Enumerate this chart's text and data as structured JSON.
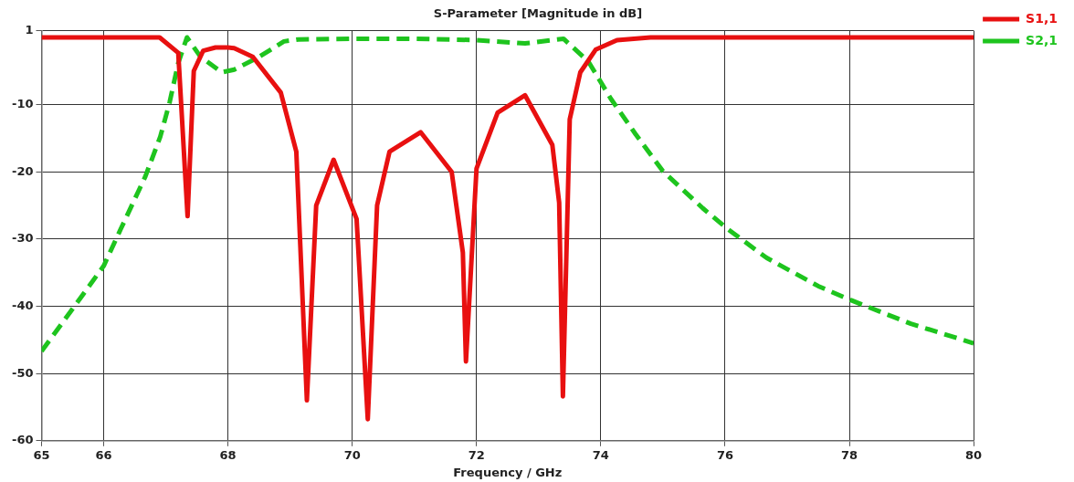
{
  "chart_data": {
    "type": "line",
    "title": "S-Parameter [Magnitude in dB]",
    "xlabel": "Frequency / GHz",
    "xlim": [
      65,
      80
    ],
    "xticks": [
      65,
      66,
      68,
      70,
      72,
      74,
      76,
      78,
      80
    ],
    "ylim": [
      -60,
      1
    ],
    "yticks": [
      -60,
      -50,
      -40,
      -30,
      -20,
      -10,
      1
    ],
    "grid": true,
    "legend": "top right",
    "series": [
      {
        "name": "S1,1",
        "color": "#e81010",
        "line_style": "solid",
        "x": [
          65,
          66,
          66.9,
          67.2,
          67.35,
          67.45,
          67.6,
          67.8,
          68,
          68.1,
          68.4,
          68.85,
          69.1,
          69.27,
          69.42,
          69.7,
          70.07,
          70.25,
          70.4,
          70.6,
          71.1,
          71.6,
          71.78,
          71.83,
          72.0,
          72.34,
          72.78,
          73.22,
          73.33,
          73.39,
          73.5,
          73.67,
          73.92,
          74.26,
          74.8,
          80
        ],
        "values": [
          0,
          0,
          0,
          -2.3,
          -26.6,
          -5,
          -2,
          -1.5,
          -1.5,
          -1.6,
          -2.9,
          -8.2,
          -17,
          -54,
          -25,
          -18.2,
          -27,
          -56.8,
          -25,
          -17,
          -14.1,
          -20,
          -32,
          -48.2,
          -19.5,
          -11.2,
          -8.6,
          -16,
          -24.6,
          -53.4,
          -12.2,
          -5.2,
          -1.8,
          -0.4,
          0,
          0
        ]
      },
      {
        "name": "S2,1",
        "color": "#1ec41e",
        "line_style": "dashed",
        "x": [
          65,
          65.53,
          66.0,
          66.27,
          66.67,
          66.91,
          67.06,
          67.2,
          67.34,
          67.56,
          67.9,
          68.1,
          68.5,
          68.9,
          69.13,
          70,
          71,
          72,
          72.78,
          73.4,
          73.8,
          74.16,
          74.56,
          75.0,
          75.64,
          76.04,
          76.67,
          77.5,
          78.0,
          78.99,
          80
        ],
        "values": [
          -46.7,
          -40,
          -34,
          -28.6,
          -20.7,
          -14.8,
          -9.7,
          -3.8,
          0,
          -2.9,
          -5.2,
          -4.8,
          -2.9,
          -0.6,
          -0.3,
          -0.2,
          -0.2,
          -0.4,
          -0.9,
          -0.2,
          -3.6,
          -9.1,
          -14.4,
          -19.9,
          -25.4,
          -28.5,
          -32.8,
          -37,
          -39,
          -42.6,
          -45.5
        ]
      }
    ]
  }
}
